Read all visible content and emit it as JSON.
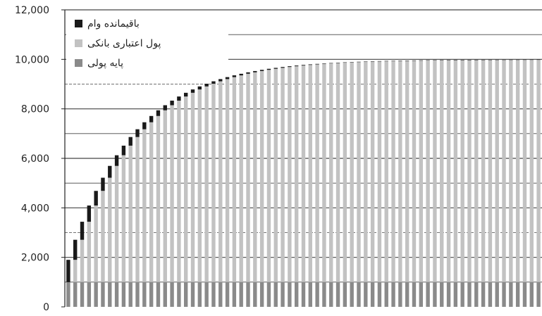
{
  "colors": {
    "loan_balance": "#1a1a1a",
    "bank_credit_money": "#c2c2c2",
    "monetary_base": "#8a8a8a",
    "gridline": "#444444",
    "axis": "#222222"
  },
  "chart_data": {
    "type": "bar",
    "stacked": true,
    "title": "",
    "xlabel": "",
    "ylabel": "",
    "ylim": [
      0,
      12000
    ],
    "y_ticks": [
      "0",
      "2,000",
      "4,000",
      "6,000",
      "8,000",
      "10,000",
      "12,000"
    ],
    "y_tick_values": [
      0,
      2000,
      4000,
      6000,
      8000,
      10000,
      12000
    ],
    "grid": true,
    "legend_position": "top-left",
    "series": [
      {
        "name": "باقیمانده وام",
        "color_key": "loan_balance",
        "values": [
          900,
          810,
          729,
          656,
          590,
          531,
          478,
          430,
          387,
          349,
          314,
          282,
          254,
          229,
          206,
          185,
          167,
          150,
          135,
          122,
          109,
          98,
          89,
          80,
          72,
          64,
          58,
          52,
          47,
          42,
          38,
          34,
          31,
          28,
          25,
          23,
          20,
          18,
          16,
          15,
          13,
          12,
          11,
          10,
          9,
          8,
          7,
          6,
          6,
          5,
          5,
          4,
          4,
          3,
          3,
          3,
          2,
          2,
          2,
          2,
          2,
          1,
          1,
          1,
          1,
          1,
          1,
          1,
          1
        ]
      },
      {
        "name": "پول اعتباری بانکی",
        "color_key": "bank_credit_money",
        "values": [
          0,
          900,
          1710,
          2439,
          3095,
          3686,
          4217,
          4695,
          5126,
          5513,
          5862,
          6176,
          6458,
          6712,
          6941,
          7147,
          7332,
          7499,
          7649,
          7784,
          7906,
          8015,
          8113,
          8202,
          8282,
          8353,
          8418,
          8476,
          8529,
          8576,
          8618,
          8657,
          8691,
          8722,
          8750,
          8775,
          8797,
          8818,
          8836,
          8852,
          8867,
          8880,
          8892,
          8903,
          8913,
          8921,
          8929,
          8936,
          8943,
          8948,
          8953,
          8958,
          8962,
          8966,
          8969,
          8972,
          8975,
          8977,
          8979,
          8981,
          8983,
          8985,
          8986,
          8987,
          8988,
          8989,
          8990,
          8991,
          8992
        ]
      },
      {
        "name": "پایه پولی",
        "color_key": "monetary_base",
        "values": [
          1000,
          1000,
          1000,
          1000,
          1000,
          1000,
          1000,
          1000,
          1000,
          1000,
          1000,
          1000,
          1000,
          1000,
          1000,
          1000,
          1000,
          1000,
          1000,
          1000,
          1000,
          1000,
          1000,
          1000,
          1000,
          1000,
          1000,
          1000,
          1000,
          1000,
          1000,
          1000,
          1000,
          1000,
          1000,
          1000,
          1000,
          1000,
          1000,
          1000,
          1000,
          1000,
          1000,
          1000,
          1000,
          1000,
          1000,
          1000,
          1000,
          1000,
          1000,
          1000,
          1000,
          1000,
          1000,
          1000,
          1000,
          1000,
          1000,
          1000,
          1000,
          1000,
          1000,
          1000,
          1000,
          1000,
          1000,
          1000,
          1000
        ]
      }
    ]
  }
}
